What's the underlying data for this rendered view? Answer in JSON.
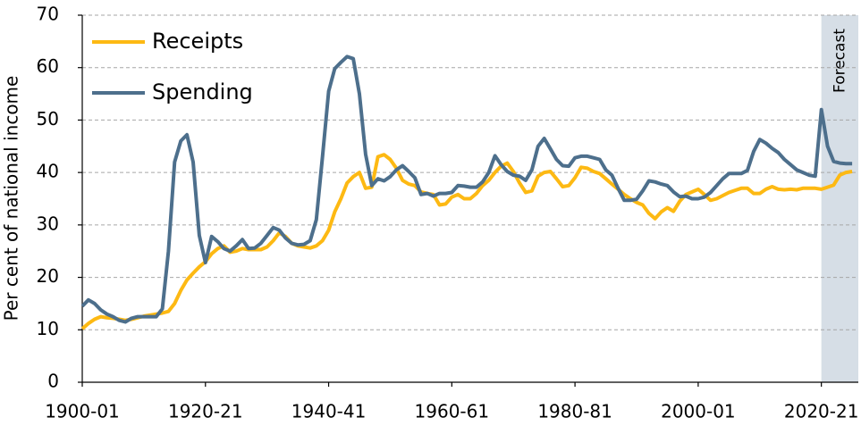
{
  "chart_data": {
    "type": "line",
    "y_label": "Per cent of national income",
    "x": [
      1900,
      1901,
      1902,
      1903,
      1904,
      1905,
      1906,
      1907,
      1908,
      1909,
      1910,
      1911,
      1912,
      1913,
      1914,
      1915,
      1916,
      1917,
      1918,
      1919,
      1920,
      1921,
      1922,
      1923,
      1924,
      1925,
      1926,
      1927,
      1928,
      1929,
      1930,
      1931,
      1932,
      1933,
      1934,
      1935,
      1936,
      1937,
      1938,
      1939,
      1940,
      1941,
      1942,
      1943,
      1944,
      1945,
      1946,
      1947,
      1948,
      1949,
      1950,
      1951,
      1952,
      1953,
      1954,
      1955,
      1956,
      1957,
      1958,
      1959,
      1960,
      1961,
      1962,
      1963,
      1964,
      1965,
      1966,
      1967,
      1968,
      1969,
      1970,
      1971,
      1972,
      1973,
      1974,
      1975,
      1976,
      1977,
      1978,
      1979,
      1980,
      1981,
      1982,
      1983,
      1984,
      1985,
      1986,
      1987,
      1988,
      1989,
      1990,
      1991,
      1992,
      1993,
      1994,
      1995,
      1996,
      1997,
      1998,
      1999,
      2000,
      2001,
      2002,
      2003,
      2004,
      2005,
      2006,
      2007,
      2008,
      2009,
      2010,
      2011,
      2012,
      2013,
      2014,
      2015,
      2016,
      2017,
      2018,
      2019,
      2020,
      2021,
      2022,
      2023,
      2024,
      2025
    ],
    "series": [
      {
        "name": "Receipts",
        "color": "#fdb913",
        "values": [
          10.2,
          11.2,
          12,
          12.5,
          12.3,
          12.2,
          12,
          11.8,
          12,
          12.3,
          12.6,
          12.8,
          13,
          13.2,
          13.5,
          15,
          17.5,
          19.5,
          20.8,
          22,
          23,
          24.5,
          25.5,
          26,
          24.8,
          25,
          25.5,
          25.3,
          25.3,
          25.3,
          25.8,
          27,
          28.5,
          27.8,
          26.5,
          26,
          25.8,
          25.6,
          26,
          27,
          29,
          32.5,
          35,
          38,
          39.2,
          40,
          37,
          37.2,
          43,
          43.4,
          42.5,
          40.8,
          38.5,
          37.8,
          37.5,
          36.3,
          36,
          35.8,
          33.8,
          34,
          35.3,
          35.8,
          35,
          35,
          36,
          37.5,
          38.5,
          40,
          41.2,
          41.8,
          40.2,
          38,
          36.2,
          36.5,
          39.3,
          40,
          40.2,
          38.8,
          37.3,
          37.5,
          39,
          41,
          40.8,
          40.2,
          39.8,
          38.8,
          37.8,
          36.8,
          35.8,
          35,
          34.3,
          33.8,
          32.2,
          31.2,
          32.5,
          33.3,
          32.6,
          34.5,
          35.8,
          36.3,
          36.8,
          35.8,
          34.7,
          35,
          35.6,
          36.2,
          36.6,
          37,
          37,
          36,
          36,
          36.8,
          37.3,
          36.8,
          36.7,
          36.8,
          36.7,
          37,
          37,
          37,
          36.8,
          37.2,
          37.6,
          39.5,
          40,
          40.2
        ]
      },
      {
        "name": "Spending",
        "color": "#4d6f8c",
        "values": [
          14.5,
          15.7,
          15,
          13.8,
          13,
          12.5,
          11.8,
          11.5,
          12.2,
          12.5,
          12.5,
          12.5,
          12.5,
          14,
          25,
          42,
          46,
          47.2,
          42,
          28,
          22.8,
          27.8,
          26.8,
          25.5,
          25,
          26,
          27.2,
          25.5,
          25.6,
          26.5,
          28,
          29.5,
          29,
          27.5,
          26.5,
          26.2,
          26.3,
          27,
          31,
          43,
          55.5,
          59.8,
          61,
          62.1,
          61.7,
          55,
          43.5,
          37.5,
          38.8,
          38.4,
          39.2,
          40.5,
          41.3,
          40.2,
          39,
          35.8,
          36,
          35.5,
          36,
          36,
          36.2,
          37.5,
          37.4,
          37.2,
          37.2,
          38.2,
          40,
          43.2,
          41.5,
          40.2,
          39.5,
          39.3,
          38.5,
          40.5,
          45,
          46.5,
          44.5,
          42.5,
          41.3,
          41.2,
          42.8,
          43.1,
          43.1,
          42.8,
          42.5,
          40.5,
          39.5,
          37,
          34.7,
          34.7,
          34.9,
          36.5,
          38.4,
          38.2,
          37.8,
          37.5,
          36.3,
          35.4,
          35.5,
          35,
          35,
          35.3,
          36.2,
          37.5,
          38.8,
          39.8,
          39.8,
          39.8,
          40.4,
          44,
          46.3,
          45.6,
          44.6,
          43.8,
          42.5,
          41.5,
          40.5,
          40,
          39.5,
          39.3,
          52,
          45,
          42.1,
          41.8,
          41.7,
          41.7
        ]
      }
    ],
    "forecast": {
      "label": "Forecast",
      "start": 2020
    },
    "xlim": [
      1900,
      2026
    ],
    "xticks": [
      {
        "value": 1900,
        "label": "1900-01"
      },
      {
        "value": 1920,
        "label": "1920-21"
      },
      {
        "value": 1940,
        "label": "1940-41"
      },
      {
        "value": 1960,
        "label": "1960-61"
      },
      {
        "value": 1980,
        "label": "1980-81"
      },
      {
        "value": 2000,
        "label": "2000-01"
      },
      {
        "value": 2020,
        "label": "2020-21"
      }
    ],
    "ylim": [
      0,
      70
    ],
    "yticks": [
      0,
      10,
      20,
      30,
      40,
      50,
      60,
      70
    ],
    "grid": true,
    "legend": "top-left"
  }
}
